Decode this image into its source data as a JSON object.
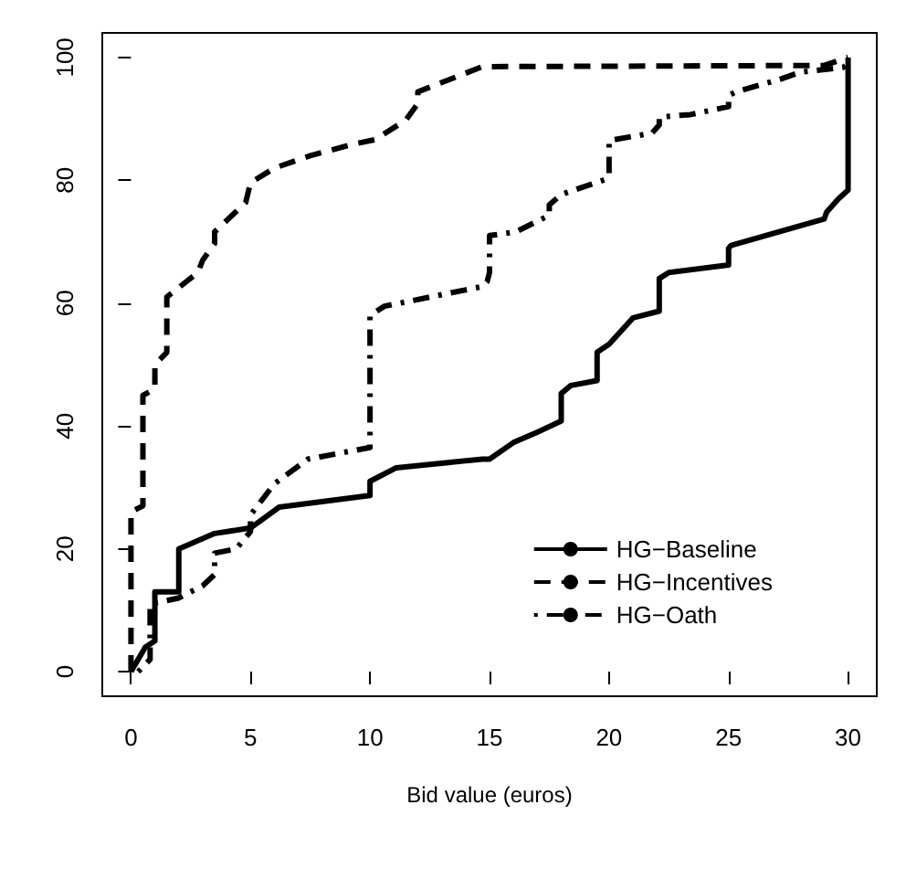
{
  "chart_data": {
    "type": "line",
    "xlabel": "Bid value (euros)",
    "xlim": [
      -1.2,
      31.2
    ],
    "ylim": [
      -4,
      104
    ],
    "xticks": [
      0,
      5,
      10,
      15,
      20,
      25,
      30
    ],
    "yticks": [
      0,
      20,
      40,
      60,
      80,
      100
    ],
    "grid": false,
    "legend": "bottom right",
    "marker": "none",
    "series": [
      {
        "name": "HG−Baseline",
        "color": "#000000",
        "line_style": "solid",
        "x": [
          0,
          0.6,
          1,
          1,
          2,
          2,
          3.5,
          5,
          6.2,
          10,
          10,
          11.1,
          14.7,
          15,
          16,
          17,
          18,
          18,
          18.4,
          19.5,
          19.5,
          20,
          21,
          22.1,
          22.1,
          22.5,
          25,
          25,
          25.1,
          29,
          29.1,
          29.6,
          30,
          30
        ],
        "values": [
          0,
          4,
          5,
          13,
          13,
          20,
          22.5,
          23.4,
          26.8,
          28.7,
          31,
          33.2,
          34.6,
          34.6,
          37.3,
          39,
          40.8,
          45.3,
          46.6,
          47.4,
          52,
          53.3,
          57.6,
          58.7,
          64,
          65,
          66.2,
          68.9,
          69.4,
          73.7,
          74.8,
          77,
          78.4,
          100
        ]
      },
      {
        "name": "HG−Incentives",
        "color": "#000000",
        "line_style": "dashed",
        "x": [
          0,
          0,
          0.5,
          0.5,
          1,
          1,
          1.5,
          1.5,
          2.8,
          3,
          3.5,
          3.5,
          4.8,
          5,
          6,
          7.5,
          9.2,
          10.2,
          11.5,
          12,
          12,
          14.7,
          29,
          30
        ],
        "values": [
          0,
          26,
          27,
          45,
          46,
          50,
          52,
          61,
          65,
          67,
          69.7,
          71.6,
          76.4,
          79.6,
          82,
          84,
          85.8,
          86.6,
          89.8,
          92.5,
          94.4,
          98.5,
          98.7,
          100
        ]
      },
      {
        "name": "HG−Oath",
        "color": "#000000",
        "line_style": "dashdot",
        "x": [
          0.3,
          0.8,
          0.8,
          2,
          3,
          3.5,
          3.5,
          4.4,
          5,
          5,
          6,
          7.4,
          10,
          10,
          10.6,
          14.7,
          14.9,
          15,
          15,
          16.1,
          17.5,
          17.5,
          18,
          19.9,
          20,
          20,
          20.2,
          21.8,
          22.1,
          22.1,
          23.4,
          25,
          25,
          25.3,
          27.2,
          28,
          29.8,
          30
        ],
        "values": [
          0,
          2,
          11,
          12,
          14,
          15.8,
          19.3,
          20,
          22.8,
          25.5,
          30.6,
          34.6,
          36.5,
          58,
          59.5,
          62.7,
          63.5,
          65,
          71,
          71.6,
          74.3,
          76,
          77.7,
          80.2,
          81,
          86.5,
          86.6,
          87.7,
          89,
          90.3,
          90.7,
          92,
          93.8,
          94.4,
          96.5,
          97.6,
          98.4,
          99
        ]
      }
    ]
  }
}
